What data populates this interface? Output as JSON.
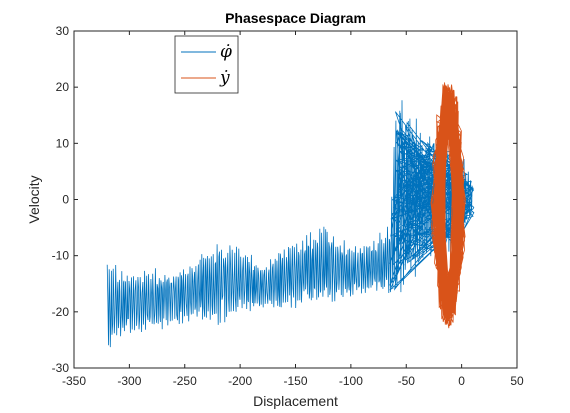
{
  "chart_data": {
    "type": "line",
    "title": "Phasespace Diagram",
    "xlabel": "Displacement",
    "ylabel": "Velocity",
    "xlim": [
      -350,
      50
    ],
    "ylim": [
      -30,
      30
    ],
    "xticks": [
      -350,
      -300,
      -250,
      -200,
      -150,
      -100,
      -50,
      0,
      50
    ],
    "yticks": [
      -30,
      -20,
      -10,
      0,
      10,
      20,
      30
    ],
    "grid": false,
    "legend_position": "top-left",
    "series": [
      {
        "name": "φ̇",
        "color": "#0072BD",
        "envelope": {
          "x": [
            -320,
            -300,
            -280,
            -260,
            -240,
            -220,
            -200,
            -180,
            -160,
            -140,
            -120,
            -100,
            -80,
            -65,
            -60,
            -50,
            -40,
            -30,
            -20,
            -10,
            0,
            5,
            10
          ],
          "upper": [
            -12,
            -13,
            -13,
            -13,
            -11,
            -8,
            -9,
            -12,
            -9,
            -7,
            -5,
            -9,
            -8,
            -5,
            17,
            15,
            12,
            10,
            10,
            9,
            8,
            5,
            3
          ],
          "lower": [
            -26,
            -24,
            -23,
            -22,
            -21,
            -22,
            -20,
            -19,
            -19,
            -18,
            -18,
            -17,
            -16,
            -17,
            -16,
            -14,
            -12,
            -10,
            -9,
            -9,
            -7,
            -4,
            -3
          ]
        }
      },
      {
        "name": "ẏ",
        "color": "#D95319",
        "loop": {
          "center_x": -12,
          "center_y": -1,
          "radius_x": [
            10,
            24
          ],
          "radius_y": [
            15,
            22
          ]
        }
      }
    ]
  }
}
